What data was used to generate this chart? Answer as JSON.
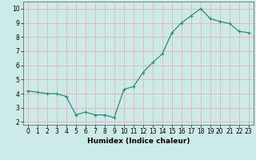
{
  "xlabel": "Humidex (Indice chaleur)",
  "x": [
    0,
    1,
    2,
    3,
    4,
    5,
    6,
    7,
    8,
    9,
    10,
    11,
    12,
    13,
    14,
    15,
    16,
    17,
    18,
    19,
    20,
    21,
    22,
    23
  ],
  "y": [
    4.2,
    4.1,
    4.0,
    4.0,
    3.8,
    2.5,
    2.7,
    2.5,
    2.5,
    2.3,
    4.3,
    4.5,
    5.5,
    6.2,
    6.8,
    8.3,
    9.0,
    9.5,
    10.0,
    9.3,
    9.1,
    8.95,
    8.4,
    8.3
  ],
  "line_color": "#2d8a7a",
  "marker": "+",
  "markersize": 3.5,
  "linewidth": 0.9,
  "bg_color": "#cceae8",
  "grid_color": "#e8b0b0",
  "xlim": [
    -0.5,
    23.5
  ],
  "ylim": [
    1.8,
    10.5
  ],
  "yticks": [
    2,
    3,
    4,
    5,
    6,
    7,
    8,
    9,
    10
  ],
  "xticks": [
    0,
    1,
    2,
    3,
    4,
    5,
    6,
    7,
    8,
    9,
    10,
    11,
    12,
    13,
    14,
    15,
    16,
    17,
    18,
    19,
    20,
    21,
    22,
    23
  ],
  "tick_fontsize": 5.5,
  "xlabel_fontsize": 6.5,
  "xlabel_fontweight": "bold"
}
